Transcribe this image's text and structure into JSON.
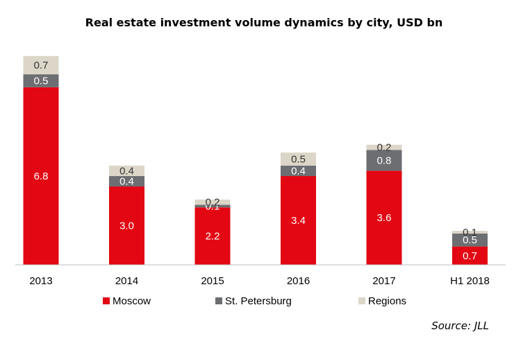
{
  "chart_data": {
    "type": "bar",
    "stacked": true,
    "title": "Real estate investment volume dynamics by city, USD bn",
    "categories": [
      "2013",
      "2014",
      "2015",
      "2016",
      "2017",
      "H1 2018"
    ],
    "series": [
      {
        "name": "Moscow",
        "color": "#e30613",
        "label_color": "#ffffff",
        "values": [
          6.8,
          3.0,
          2.2,
          3.4,
          3.6,
          0.7
        ],
        "labels": [
          "6.8",
          "3.0",
          "2.2",
          "3.4",
          "3.6",
          "0.7"
        ]
      },
      {
        "name": "St. Petersburg",
        "color": "#6d6e71",
        "label_color": "#ffffff",
        "values": [
          0.5,
          0.4,
          0.1,
          0.4,
          0.8,
          0.5
        ],
        "labels": [
          "0.5",
          "0.4",
          "0.1",
          "0.4",
          "0.8",
          "0.5"
        ]
      },
      {
        "name": "Regions",
        "color": "#dcd6c8",
        "label_color": "#333333",
        "values": [
          0.7,
          0.4,
          0.2,
          0.5,
          0.2,
          0.1
        ],
        "labels": [
          "0.7",
          "0.4",
          "0.2",
          "0.5",
          "0.2",
          "0.1"
        ]
      }
    ],
    "ylim": [
      0,
      8.1
    ],
    "grid": false,
    "legend_position": "bottom",
    "source": "Source: JLL"
  }
}
